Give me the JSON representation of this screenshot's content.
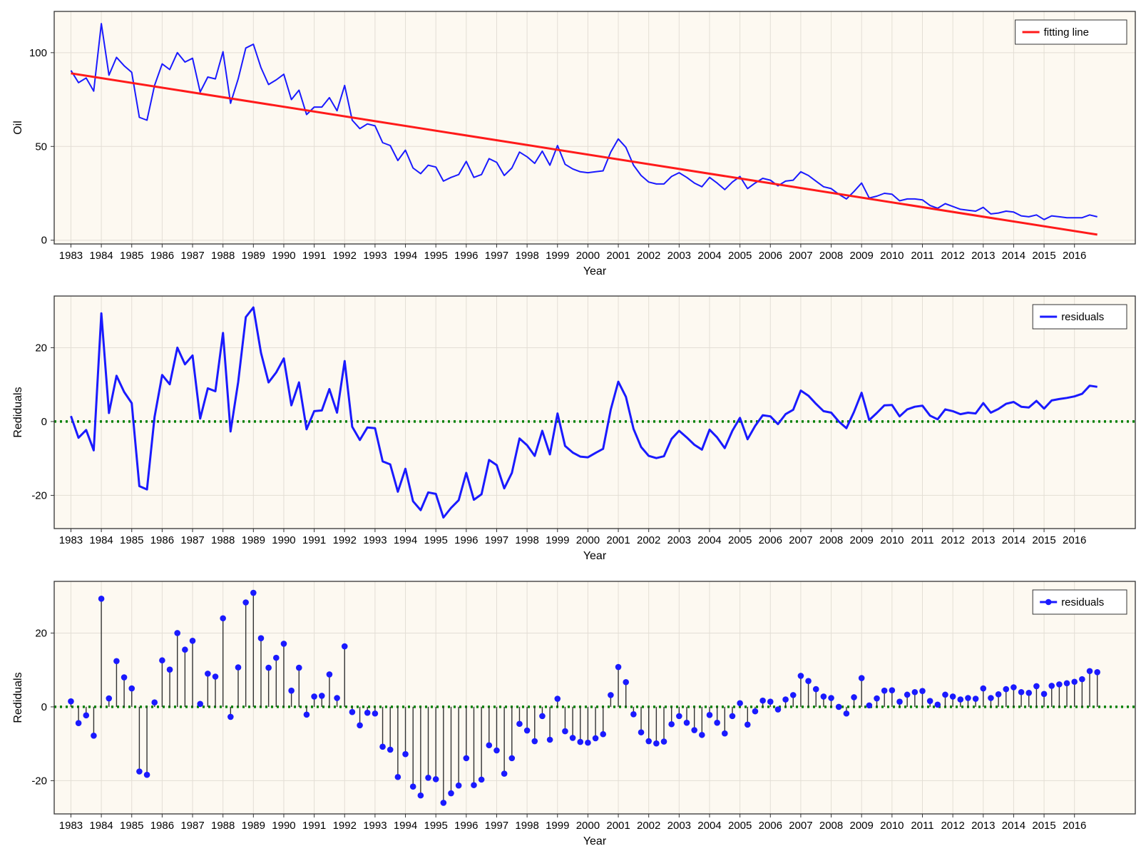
{
  "colors": {
    "background": "#ffffff",
    "plot_background": "#fdf9f1",
    "grid": "#e3ded5",
    "axes_frame": "#333333",
    "series_blue": "#1a1aff",
    "fit_red": "#ff1a1a",
    "zero_line": "#008000",
    "stem": "#333333"
  },
  "chart_data": [
    {
      "type": "line",
      "xlabel": "Year",
      "ylabel": "Oil",
      "xlim": [
        1982.45,
        2018.0
      ],
      "ylim": [
        -2,
        122
      ],
      "xticks": [
        1983,
        1984,
        1985,
        1986,
        1987,
        1988,
        1989,
        1990,
        1991,
        1992,
        1993,
        1994,
        1995,
        1996,
        1997,
        1998,
        1999,
        2000,
        2001,
        2002,
        2003,
        2004,
        2005,
        2006,
        2007,
        2008,
        2009,
        2010,
        2011,
        2012,
        2013,
        2014,
        2015,
        2016
      ],
      "yticks": [
        0,
        50,
        100
      ],
      "grid": true,
      "legend": "top-right",
      "x_start": 1983.0,
      "x_step": 0.25,
      "series": [
        {
          "name": "",
          "style": "line",
          "color": "#1a1aff",
          "values": [
            90.5,
            84.0,
            86.5,
            79.5,
            115.5,
            88.0,
            97.5,
            93.0,
            89.5,
            65.5,
            64.0,
            82.5,
            94.0,
            91.0,
            100.0,
            95.0,
            97.0,
            79.0,
            87.0,
            86.0,
            100.5,
            73.0,
            86.0,
            102.5,
            104.5,
            92.0,
            83.0,
            85.5,
            88.5,
            75.0,
            80.0,
            67.0,
            71.0,
            71.0,
            76.0,
            69.0,
            82.5,
            64.0,
            59.5,
            62.0,
            61.0,
            52.0,
            50.5,
            42.5,
            48.0,
            38.5,
            35.5,
            40.0,
            39.0,
            31.5,
            33.5,
            35.0,
            42.0,
            33.5,
            35.0,
            43.5,
            41.5,
            34.5,
            38.5,
            47.0,
            44.5,
            41.0,
            47.5,
            40.0,
            50.5,
            40.5,
            38.0,
            36.5,
            36.0,
            36.5,
            37.0,
            47.0,
            54.0,
            49.5,
            40.0,
            34.5,
            31.0,
            30.0,
            30.0,
            34.0,
            36.0,
            33.5,
            30.5,
            28.5,
            33.5,
            30.5,
            27.0,
            31.0,
            34.0,
            27.5,
            30.5,
            33.0,
            32.0,
            29.0,
            31.5,
            32.0,
            36.5,
            34.5,
            31.5,
            28.5,
            27.5,
            24.5,
            22.0,
            26.0,
            30.5,
            22.5,
            23.5,
            25.0,
            24.5,
            21.0,
            22.0,
            22.0,
            21.5,
            18.5,
            17.0,
            19.5,
            18.0,
            16.5,
            16.0,
            15.5,
            17.5,
            14.0,
            14.5,
            15.5,
            15.0,
            13.0,
            12.5,
            13.5,
            11.0,
            13.0,
            12.5,
            12.0,
            12.0,
            12.0,
            13.5,
            12.5
          ]
        },
        {
          "name": "fitting line",
          "style": "line",
          "color": "#ff1a1a",
          "x": [
            1983.0,
            2016.75
          ],
          "values": [
            89.0,
            3.0
          ]
        }
      ]
    },
    {
      "type": "line",
      "xlabel": "Year",
      "ylabel": "Rediduals",
      "xlim": [
        1982.45,
        2018.0
      ],
      "ylim": [
        -29,
        34
      ],
      "xticks": [
        1983,
        1984,
        1985,
        1986,
        1987,
        1988,
        1989,
        1990,
        1991,
        1992,
        1993,
        1994,
        1995,
        1996,
        1997,
        1998,
        1999,
        2000,
        2001,
        2002,
        2003,
        2004,
        2005,
        2006,
        2007,
        2008,
        2009,
        2010,
        2011,
        2012,
        2013,
        2014,
        2015,
        2016
      ],
      "yticks": [
        -20,
        0,
        20
      ],
      "grid": true,
      "legend": "top-right",
      "zero_line": true,
      "x_start": 1983.0,
      "x_step": 0.25,
      "series": [
        {
          "name": "residuals",
          "style": "line",
          "color": "#1a1aff",
          "values": [
            1.5,
            -4.4,
            -2.3,
            -7.8,
            29.3,
            2.3,
            12.4,
            8.0,
            5.0,
            -17.5,
            -18.4,
            1.2,
            12.6,
            10.1,
            20.0,
            15.5,
            17.9,
            0.8,
            9.0,
            8.2,
            24.0,
            -2.7,
            10.7,
            28.3,
            30.9,
            18.6,
            10.6,
            13.3,
            17.1,
            4.4,
            10.6,
            -2.1,
            2.8,
            3.0,
            8.8,
            2.4,
            16.4,
            -1.4,
            -5.0,
            -1.6,
            -1.8,
            -10.8,
            -11.6,
            -19.0,
            -12.8,
            -21.6,
            -24.0,
            -19.2,
            -19.6,
            -26.0,
            -23.4,
            -21.3,
            -13.9,
            -21.2,
            -19.7,
            -10.4,
            -11.8,
            -18.1,
            -13.9,
            -4.6,
            -6.4,
            -9.3,
            -2.5,
            -8.9,
            2.2,
            -6.6,
            -8.4,
            -9.5,
            -9.7,
            -8.5,
            -7.4,
            3.2,
            10.8,
            6.7,
            -2.0,
            -6.9,
            -9.3,
            -9.9,
            -9.4,
            -4.7,
            -2.5,
            -4.3,
            -6.3,
            -7.6,
            -2.2,
            -4.3,
            -7.2,
            -2.5,
            1.0,
            -4.8,
            -1.2,
            1.7,
            1.4,
            -0.7,
            2.0,
            3.2,
            8.4,
            7.0,
            4.8,
            2.8,
            2.4,
            0.0,
            -1.8,
            2.6,
            7.8,
            0.4,
            2.3,
            4.4,
            4.5,
            1.4,
            3.3,
            4.0,
            4.3,
            1.6,
            0.6,
            3.3,
            2.8,
            2.0,
            2.4,
            2.2,
            5.0,
            2.4,
            3.4,
            4.8,
            5.3,
            4.0,
            3.8,
            5.6,
            3.5,
            5.7,
            6.1,
            6.4,
            6.8,
            7.5,
            9.7,
            9.4
          ]
        }
      ]
    },
    {
      "type": "stem",
      "xlabel": "Year",
      "ylabel": "Rediduals",
      "xlim": [
        1982.45,
        2018.0
      ],
      "ylim": [
        -29,
        34
      ],
      "xticks": [
        1983,
        1984,
        1985,
        1986,
        1987,
        1988,
        1989,
        1990,
        1991,
        1992,
        1993,
        1994,
        1995,
        1996,
        1997,
        1998,
        1999,
        2000,
        2001,
        2002,
        2003,
        2004,
        2005,
        2006,
        2007,
        2008,
        2009,
        2010,
        2011,
        2012,
        2013,
        2014,
        2015,
        2016
      ],
      "yticks": [
        -20,
        0,
        20
      ],
      "grid": true,
      "legend": "top-right",
      "zero_line": true,
      "x_start": 1983.0,
      "x_step": 0.25,
      "series": [
        {
          "name": "residuals",
          "style": "stem",
          "color": "#1a1aff",
          "values": [
            1.5,
            -4.4,
            -2.3,
            -7.8,
            29.3,
            2.3,
            12.4,
            8.0,
            5.0,
            -17.5,
            -18.4,
            1.2,
            12.6,
            10.1,
            20.0,
            15.5,
            17.9,
            0.8,
            9.0,
            8.2,
            24.0,
            -2.7,
            10.7,
            28.3,
            30.9,
            18.6,
            10.6,
            13.3,
            17.1,
            4.4,
            10.6,
            -2.1,
            2.8,
            3.0,
            8.8,
            2.4,
            16.4,
            -1.4,
            -5.0,
            -1.6,
            -1.8,
            -10.8,
            -11.6,
            -19.0,
            -12.8,
            -21.6,
            -24.0,
            -19.2,
            -19.6,
            -26.0,
            -23.4,
            -21.3,
            -13.9,
            -21.2,
            -19.7,
            -10.4,
            -11.8,
            -18.1,
            -13.9,
            -4.6,
            -6.4,
            -9.3,
            -2.5,
            -8.9,
            2.2,
            -6.6,
            -8.4,
            -9.5,
            -9.7,
            -8.5,
            -7.4,
            3.2,
            10.8,
            6.7,
            -2.0,
            -6.9,
            -9.3,
            -9.9,
            -9.4,
            -4.7,
            -2.5,
            -4.3,
            -6.3,
            -7.6,
            -2.2,
            -4.3,
            -7.2,
            -2.5,
            1.0,
            -4.8,
            -1.2,
            1.7,
            1.4,
            -0.7,
            2.0,
            3.2,
            8.4,
            7.0,
            4.8,
            2.8,
            2.4,
            0.0,
            -1.8,
            2.6,
            7.8,
            0.4,
            2.3,
            4.4,
            4.5,
            1.4,
            3.3,
            4.0,
            4.3,
            1.6,
            0.6,
            3.3,
            2.8,
            2.0,
            2.4,
            2.2,
            5.0,
            2.4,
            3.4,
            4.8,
            5.3,
            4.0,
            3.8,
            5.6,
            3.5,
            5.7,
            6.1,
            6.4,
            6.8,
            7.5,
            9.7,
            9.4
          ]
        }
      ]
    }
  ]
}
